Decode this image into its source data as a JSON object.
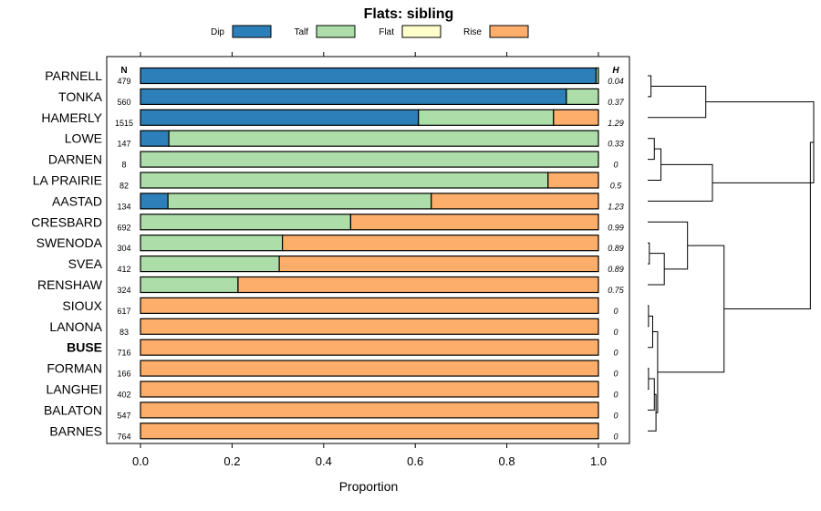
{
  "chart_data": {
    "type": "bar",
    "stacked": true,
    "orientation": "horizontal",
    "title": "Flats: sibling",
    "xlabel": "Proportion",
    "ylabel": "",
    "xlim": [
      0,
      1
    ],
    "x_ticks": [
      "0.0",
      "0.2",
      "0.4",
      "0.6",
      "0.8",
      "1.0"
    ],
    "x_tick_values": [
      0,
      0.2,
      0.4,
      0.6,
      0.8,
      1.0
    ],
    "legend_position": "top",
    "n_header": "N",
    "h_header": "H",
    "series": [
      {
        "name": "Dip",
        "color": "#2c7fb8"
      },
      {
        "name": "Talf",
        "color": "#addda8"
      },
      {
        "name": "Flat",
        "color": "#ffffcc"
      },
      {
        "name": "Rise",
        "color": "#fdae6b"
      }
    ],
    "rows": [
      {
        "name": "PARNELL",
        "n": "479",
        "h": "0.04",
        "bold": false,
        "values": [
          0.995,
          0.005,
          0,
          0
        ]
      },
      {
        "name": "TONKA",
        "n": "560",
        "h": "0.37",
        "bold": false,
        "values": [
          0.93,
          0.07,
          0,
          0
        ]
      },
      {
        "name": "HAMERLY",
        "n": "1515",
        "h": "1.29",
        "bold": false,
        "values": [
          0.607,
          0.295,
          0,
          0.098
        ]
      },
      {
        "name": "LOWE",
        "n": "147",
        "h": "0.33",
        "bold": false,
        "values": [
          0.062,
          0.938,
          0,
          0
        ]
      },
      {
        "name": "DARNEN",
        "n": "8",
        "h": "0",
        "bold": false,
        "values": [
          0,
          1.0,
          0,
          0
        ]
      },
      {
        "name": "LA PRAIRIE",
        "n": "82",
        "h": "0.5",
        "bold": false,
        "values": [
          0,
          0.89,
          0,
          0.11
        ]
      },
      {
        "name": "AASTAD",
        "n": "134",
        "h": "1.23",
        "bold": false,
        "values": [
          0.06,
          0.575,
          0,
          0.365
        ]
      },
      {
        "name": "CRESBARD",
        "n": "692",
        "h": "0.99",
        "bold": false,
        "values": [
          0,
          0.459,
          0,
          0.541
        ]
      },
      {
        "name": "SWENODA",
        "n": "304",
        "h": "0.89",
        "bold": false,
        "values": [
          0,
          0.31,
          0,
          0.69
        ]
      },
      {
        "name": "SVEA",
        "n": "412",
        "h": "0.89",
        "bold": false,
        "values": [
          0,
          0.303,
          0,
          0.697
        ]
      },
      {
        "name": "RENSHAW",
        "n": "324",
        "h": "0.75",
        "bold": false,
        "values": [
          0,
          0.213,
          0,
          0.787
        ]
      },
      {
        "name": "SIOUX",
        "n": "617",
        "h": "0",
        "bold": false,
        "values": [
          0,
          0,
          0,
          1.0
        ]
      },
      {
        "name": "LANONA",
        "n": "83",
        "h": "0",
        "bold": false,
        "values": [
          0,
          0,
          0,
          1.0
        ]
      },
      {
        "name": "BUSE",
        "n": "716",
        "h": "0",
        "bold": true,
        "values": [
          0,
          0,
          0,
          1.0
        ]
      },
      {
        "name": "FORMAN",
        "n": "166",
        "h": "0",
        "bold": false,
        "values": [
          0,
          0,
          0,
          1.0
        ]
      },
      {
        "name": "LANGHEI",
        "n": "402",
        "h": "0",
        "bold": false,
        "values": [
          0,
          0,
          0,
          1.0
        ]
      },
      {
        "name": "BALATON",
        "n": "547",
        "h": "0",
        "bold": false,
        "values": [
          0,
          0,
          0,
          1.0
        ]
      },
      {
        "name": "BARNES",
        "n": "764",
        "h": "0",
        "bold": false,
        "values": [
          0,
          0,
          0,
          1.0
        ]
      }
    ],
    "dendrogram": {
      "leaf_order": [
        "PARNELL",
        "TONKA",
        "HAMERLY",
        "LOWE",
        "DARNEN",
        "LA PRAIRIE",
        "AASTAD",
        "CRESBARD",
        "SWENODA",
        "SVEA",
        "RENSHAW",
        "SIOUX",
        "LANONA",
        "BUSE",
        "FORMAN",
        "LANGHEI",
        "BALATON",
        "BARNES"
      ],
      "merges": [
        {
          "a": "L0",
          "b": "L1",
          "height": 0.02
        },
        {
          "a": "M0",
          "b": "L2",
          "height": 0.35
        },
        {
          "a": "L3",
          "b": "L4",
          "height": 0.04
        },
        {
          "a": "M2",
          "b": "L5",
          "height": 0.08
        },
        {
          "a": "M3",
          "b": "L6",
          "height": 0.39
        },
        {
          "a": "M1",
          "b": "M4",
          "height": 1.0
        },
        {
          "a": "L8",
          "b": "L9",
          "height": 0.01
        },
        {
          "a": "M6",
          "b": "L10",
          "height": 0.1
        },
        {
          "a": "L7",
          "b": "M7",
          "height": 0.24
        },
        {
          "a": "L11",
          "b": "L12",
          "height": 0.005
        },
        {
          "a": "M9",
          "b": "L13",
          "height": 0.03
        },
        {
          "a": "L14",
          "b": "L15",
          "height": 0.005
        },
        {
          "a": "M11",
          "b": "L16",
          "height": 0.04
        },
        {
          "a": "M12",
          "b": "L17",
          "height": 0.05
        },
        {
          "a": "M10",
          "b": "M13",
          "height": 0.06
        },
        {
          "a": "M8",
          "b": "M14",
          "height": 0.46
        },
        {
          "a": "M5",
          "b": "M15",
          "height": 0.98
        }
      ]
    }
  }
}
